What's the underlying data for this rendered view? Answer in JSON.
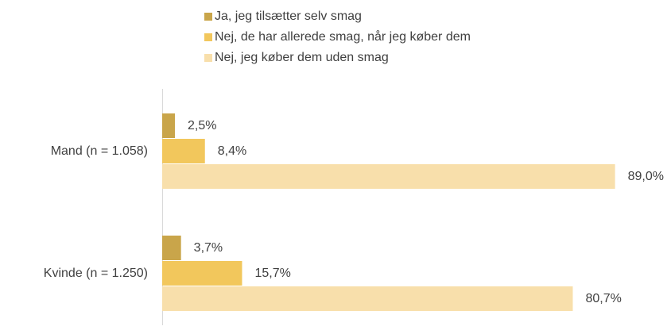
{
  "chart_data": {
    "type": "bar",
    "orientation": "horizontal",
    "categories": [
      "Mand (n = 1.058)",
      "Kvinde (n = 1.250)"
    ],
    "series": [
      {
        "name": "Ja, jeg tilsætter selv smag",
        "color": "#c9a54a",
        "values": [
          2.5,
          3.7
        ],
        "value_labels": [
          "2,5%",
          "3,7%"
        ]
      },
      {
        "name": "Nej, de har allerede smag, når jeg køber dem",
        "color": "#f2c75c",
        "values": [
          8.4,
          15.7
        ],
        "value_labels": [
          "8,4%",
          "15,7%"
        ]
      },
      {
        "name": "Nej, jeg køber dem uden smag",
        "color": "#f8dfab",
        "values": [
          89.0,
          80.7
        ],
        "value_labels": [
          "89,0%",
          "80,7%"
        ]
      }
    ],
    "legend": "top"
  }
}
